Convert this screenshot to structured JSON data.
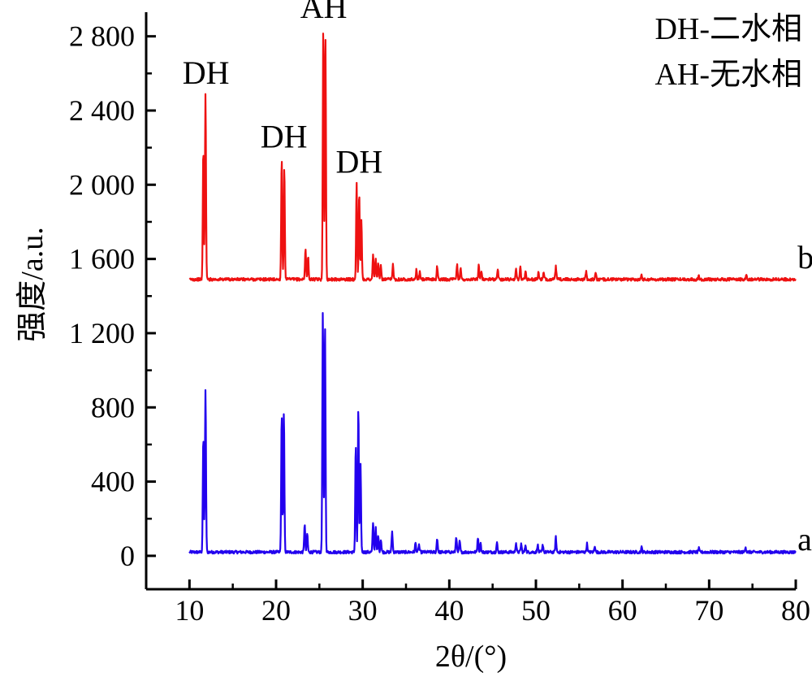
{
  "chart_data": {
    "type": "line",
    "xlabel": "2θ/(°)",
    "ylabel": "强度/a.u.",
    "xlim": [
      5,
      80
    ],
    "ylim": [
      -180,
      2930
    ],
    "x_ticks": [
      10,
      20,
      30,
      40,
      50,
      60,
      70,
      80
    ],
    "y_ticks": [
      {
        "value": 0,
        "label": "0"
      },
      {
        "value": 400,
        "label": "400"
      },
      {
        "value": 800,
        "label": "800"
      },
      {
        "value": 1200,
        "label": "1 200"
      },
      {
        "value": 1600,
        "label": "1 600"
      },
      {
        "value": 2000,
        "label": "2 000"
      },
      {
        "value": 2400,
        "label": "2 400"
      },
      {
        "value": 2800,
        "label": "2 800"
      }
    ],
    "series": [
      {
        "name": "a",
        "color": "#2200ee",
        "baseline": 20,
        "x_range": [
          10,
          80
        ],
        "peaks": [
          [
            11.6,
            620
          ],
          [
            11.85,
            870
          ],
          [
            20.65,
            740
          ],
          [
            20.9,
            750
          ],
          [
            23.3,
            150
          ],
          [
            23.6,
            100
          ],
          [
            25.4,
            1300
          ],
          [
            25.65,
            1220
          ],
          [
            29.2,
            580
          ],
          [
            29.5,
            780
          ],
          [
            29.75,
            470
          ],
          [
            31.2,
            160
          ],
          [
            31.5,
            130
          ],
          [
            31.8,
            90
          ],
          [
            32.1,
            70
          ],
          [
            33.4,
            110
          ],
          [
            36.1,
            50
          ],
          [
            36.5,
            40
          ],
          [
            38.6,
            75
          ],
          [
            40.8,
            85
          ],
          [
            41.2,
            60
          ],
          [
            43.3,
            80
          ],
          [
            43.6,
            55
          ],
          [
            45.5,
            50
          ],
          [
            47.7,
            50
          ],
          [
            48.3,
            45
          ],
          [
            48.8,
            40
          ],
          [
            50.2,
            40
          ],
          [
            50.8,
            40
          ],
          [
            52.3,
            80
          ],
          [
            55.9,
            45
          ],
          [
            56.8,
            35
          ],
          [
            62.2,
            25
          ],
          [
            68.8,
            20
          ],
          [
            74.2,
            30
          ]
        ]
      },
      {
        "name": "b",
        "color": "#ee1111",
        "baseline": 1490,
        "x_range": [
          10,
          80
        ],
        "peaks": [
          [
            11.6,
            700
          ],
          [
            11.85,
            995
          ],
          [
            20.65,
            650
          ],
          [
            20.95,
            600
          ],
          [
            23.4,
            170
          ],
          [
            23.7,
            120
          ],
          [
            25.45,
            1375
          ],
          [
            25.7,
            1300
          ],
          [
            29.3,
            520
          ],
          [
            29.6,
            460
          ],
          [
            29.85,
            320
          ],
          [
            31.2,
            130
          ],
          [
            31.5,
            110
          ],
          [
            31.8,
            90
          ],
          [
            32.1,
            70
          ],
          [
            33.5,
            80
          ],
          [
            36.2,
            50
          ],
          [
            36.6,
            40
          ],
          [
            38.6,
            70
          ],
          [
            40.9,
            80
          ],
          [
            41.3,
            60
          ],
          [
            43.4,
            75
          ],
          [
            43.7,
            50
          ],
          [
            45.6,
            55
          ],
          [
            47.7,
            60
          ],
          [
            48.2,
            65
          ],
          [
            48.8,
            45
          ],
          [
            50.3,
            40
          ],
          [
            50.9,
            35
          ],
          [
            52.3,
            70
          ],
          [
            55.8,
            40
          ],
          [
            56.9,
            30
          ],
          [
            62.2,
            22
          ],
          [
            68.8,
            18
          ],
          [
            74.3,
            25
          ]
        ]
      }
    ],
    "annotations": [
      {
        "text": "DH",
        "x": 11.9,
        "y": 2545,
        "color": "#000000"
      },
      {
        "text": "DH",
        "x": 20.9,
        "y": 2200,
        "color": "#000000"
      },
      {
        "text": "AH",
        "x": 25.5,
        "y": 2900,
        "color": "#000000"
      },
      {
        "text": "DH",
        "x": 29.6,
        "y": 2065,
        "color": "#000000"
      },
      {
        "text": "b",
        "x": 80.2,
        "y": 1550,
        "color": "#000000"
      },
      {
        "text": "a",
        "x": 80.2,
        "y": 30,
        "color": "#000000"
      }
    ],
    "legend": {
      "position": "top-right",
      "lines": [
        "DH-二水相",
        "AH-无水相"
      ]
    }
  }
}
